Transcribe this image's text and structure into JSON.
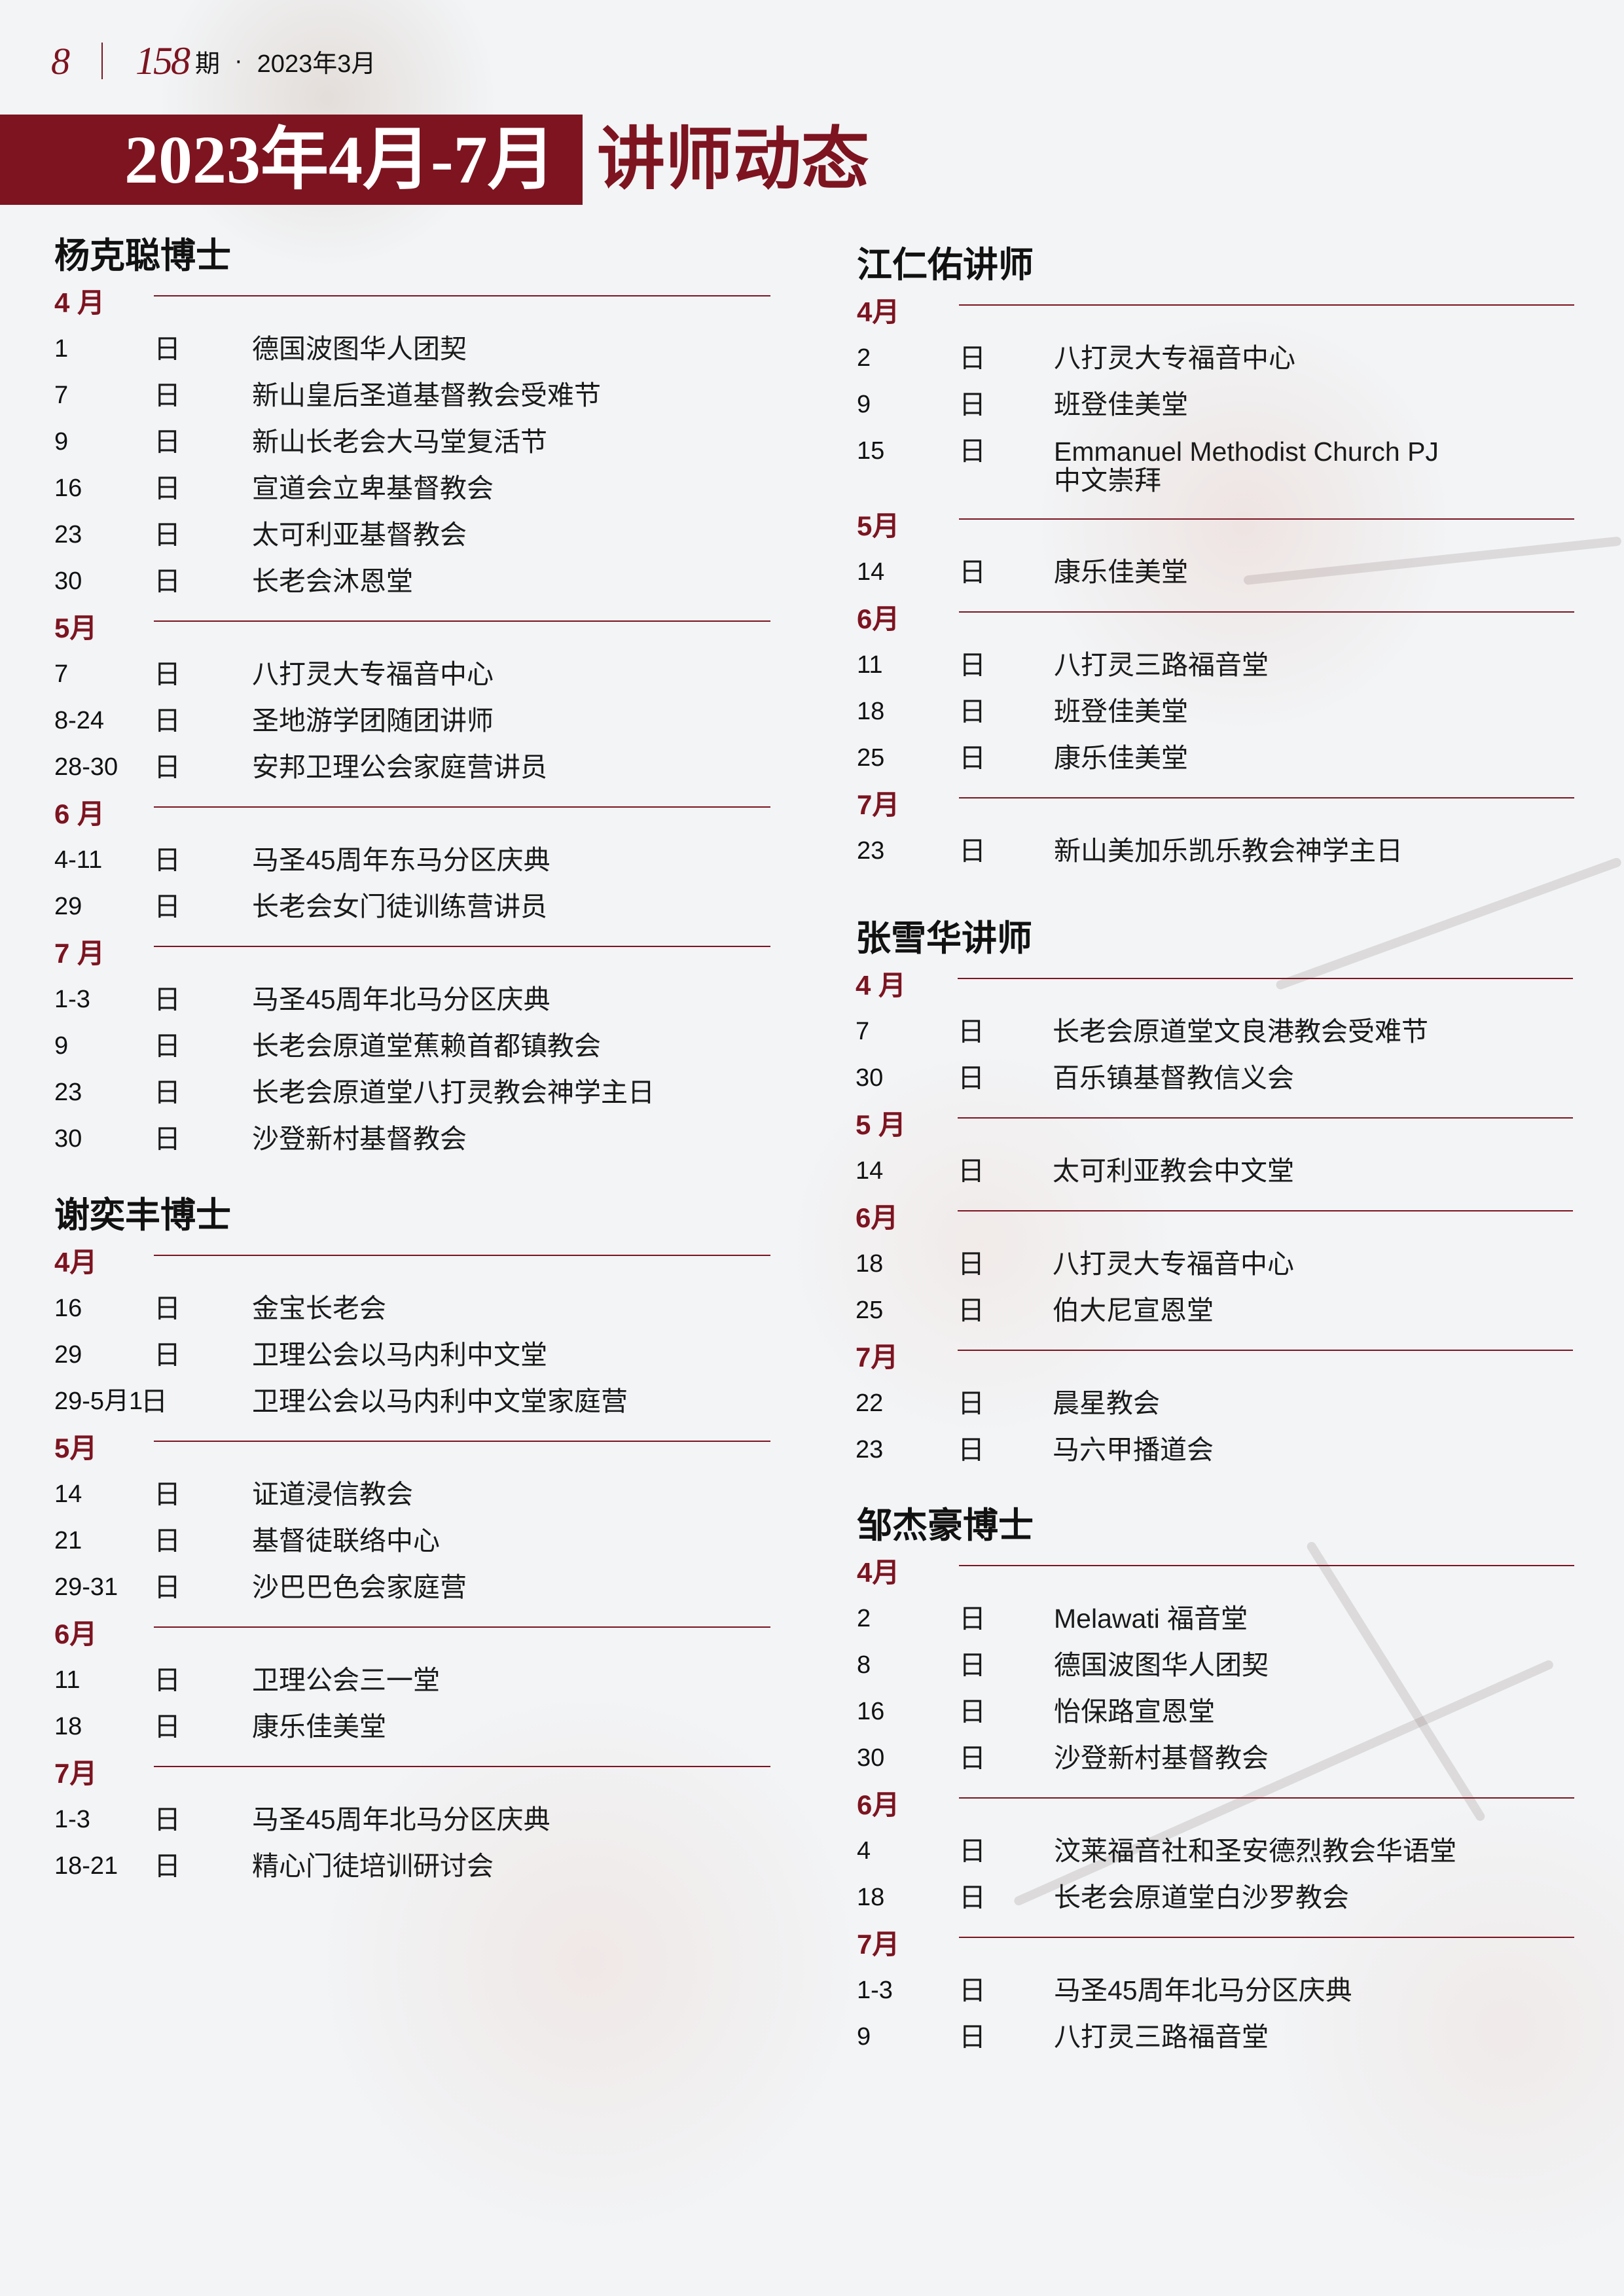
{
  "header": {
    "page_number": "8",
    "issue_number": "158",
    "issue_suffix": "期",
    "separator": "·",
    "issue_date": "2023年3月"
  },
  "title": {
    "main": "2023年4月-7月",
    "sub": "讲师动态"
  },
  "colors": {
    "accent": "#7d1420",
    "background": "#f2f4f6",
    "text": "#1a1a1a"
  },
  "day_label": "日",
  "sections": [
    {
      "name": "杨克聪博士",
      "months": [
        {
          "label": "4 月",
          "items": [
            {
              "date": "1",
              "place": "德国波图华人团契"
            },
            {
              "date": "7",
              "place": "新山皇后圣道基督教会受难节"
            },
            {
              "date": "9",
              "place": "新山长老会大马堂复活节"
            },
            {
              "date": "16",
              "place": "宣道会立卑基督教会"
            },
            {
              "date": "23",
              "place": "太可利亚基督教会"
            },
            {
              "date": "30",
              "place": "长老会沐恩堂"
            }
          ]
        },
        {
          "label": "5月",
          "items": [
            {
              "date": "7",
              "place": "八打灵大专福音中心"
            },
            {
              "date": "8-24",
              "place": "圣地游学团随团讲师"
            },
            {
              "date": "28-30",
              "place": "安邦卫理公会家庭营讲员"
            }
          ]
        },
        {
          "label": "6 月",
          "items": [
            {
              "date": "4-11",
              "place": "马圣45周年东马分区庆典"
            },
            {
              "date": "29",
              "place": "长老会女门徒训练营讲员"
            }
          ]
        },
        {
          "label": "7 月",
          "items": [
            {
              "date": "1-3",
              "place": "马圣45周年北马分区庆典"
            },
            {
              "date": "9",
              "place": "长老会原道堂蕉赖首都镇教会"
            },
            {
              "date": "23",
              "place": "长老会原道堂八打灵教会神学主日"
            },
            {
              "date": "30",
              "place": "沙登新村基督教会"
            }
          ]
        }
      ]
    },
    {
      "name": "谢奕丰博士",
      "months": [
        {
          "label": "4月",
          "items": [
            {
              "date": "16",
              "place": "金宝长老会"
            },
            {
              "date": "29",
              "place": "卫理公会以马内利中文堂"
            },
            {
              "date": "29-5月1",
              "place": "卫理公会以马内利中文堂家庭营"
            }
          ]
        },
        {
          "label": "5月",
          "items": [
            {
              "date": "14",
              "place": "证道浸信教会"
            },
            {
              "date": "21",
              "place": "基督徒联络中心"
            },
            {
              "date": "29-31",
              "place": "沙巴巴色会家庭营"
            }
          ]
        },
        {
          "label": "6月",
          "items": [
            {
              "date": "11",
              "place": "卫理公会三一堂"
            },
            {
              "date": "18",
              "place": "康乐佳美堂"
            }
          ]
        },
        {
          "label": "7月",
          "items": [
            {
              "date": "1-3",
              "place": "马圣45周年北马分区庆典"
            },
            {
              "date": "18-21",
              "place": "精心门徒培训研讨会"
            }
          ]
        }
      ]
    },
    {
      "name": "江仁佑讲师",
      "months": [
        {
          "label": "4月",
          "items": [
            {
              "date": "2",
              "place": "八打灵大专福音中心"
            },
            {
              "date": "9",
              "place": "班登佳美堂"
            },
            {
              "date": "15",
              "place": "Emmanuel Methodist Church PJ",
              "place_line2": "中文崇拜"
            }
          ]
        },
        {
          "label": "5月",
          "items": [
            {
              "date": "14",
              "place": "康乐佳美堂"
            }
          ]
        },
        {
          "label": "6月",
          "items": [
            {
              "date": "11",
              "place": "八打灵三路福音堂"
            },
            {
              "date": "18",
              "place": "班登佳美堂"
            },
            {
              "date": "25",
              "place": "康乐佳美堂"
            }
          ]
        },
        {
          "label": "7月",
          "items": [
            {
              "date": "23",
              "place": "新山美加乐凯乐教会神学主日"
            }
          ]
        }
      ]
    },
    {
      "name": "张雪华讲师",
      "months": [
        {
          "label": "4 月",
          "items": [
            {
              "date": "7",
              "place": "长老会原道堂文良港教会受难节"
            },
            {
              "date": "30",
              "place": "百乐镇基督教信义会"
            }
          ]
        },
        {
          "label": "5 月",
          "items": [
            {
              "date": "14",
              "place": "太可利亚教会中文堂"
            }
          ]
        },
        {
          "label": "6月",
          "items": [
            {
              "date": "18",
              "place": "八打灵大专福音中心"
            },
            {
              "date": "25",
              "place": "伯大尼宣恩堂"
            }
          ]
        },
        {
          "label": "7月",
          "items": [
            {
              "date": "22",
              "place": "晨星教会"
            },
            {
              "date": "23",
              "place": "马六甲播道会"
            }
          ]
        }
      ]
    },
    {
      "name": "邹杰豪博士",
      "months": [
        {
          "label": "4月",
          "items": [
            {
              "date": "2",
              "place": "Melawati 福音堂"
            },
            {
              "date": "8",
              "place": "德国波图华人团契"
            },
            {
              "date": "16",
              "place": "怡保路宣恩堂"
            },
            {
              "date": "30",
              "place": "沙登新村基督教会"
            }
          ]
        },
        {
          "label": "6月",
          "items": [
            {
              "date": "4",
              "place": "汶莱福音社和圣安德烈教会华语堂"
            },
            {
              "date": "18",
              "place": "长老会原道堂白沙罗教会"
            }
          ]
        },
        {
          "label": "7月",
          "items": [
            {
              "date": "1-3",
              "place": "马圣45周年北马分区庆典"
            },
            {
              "date": "9",
              "place": "八打灵三路福音堂"
            }
          ]
        }
      ]
    }
  ]
}
